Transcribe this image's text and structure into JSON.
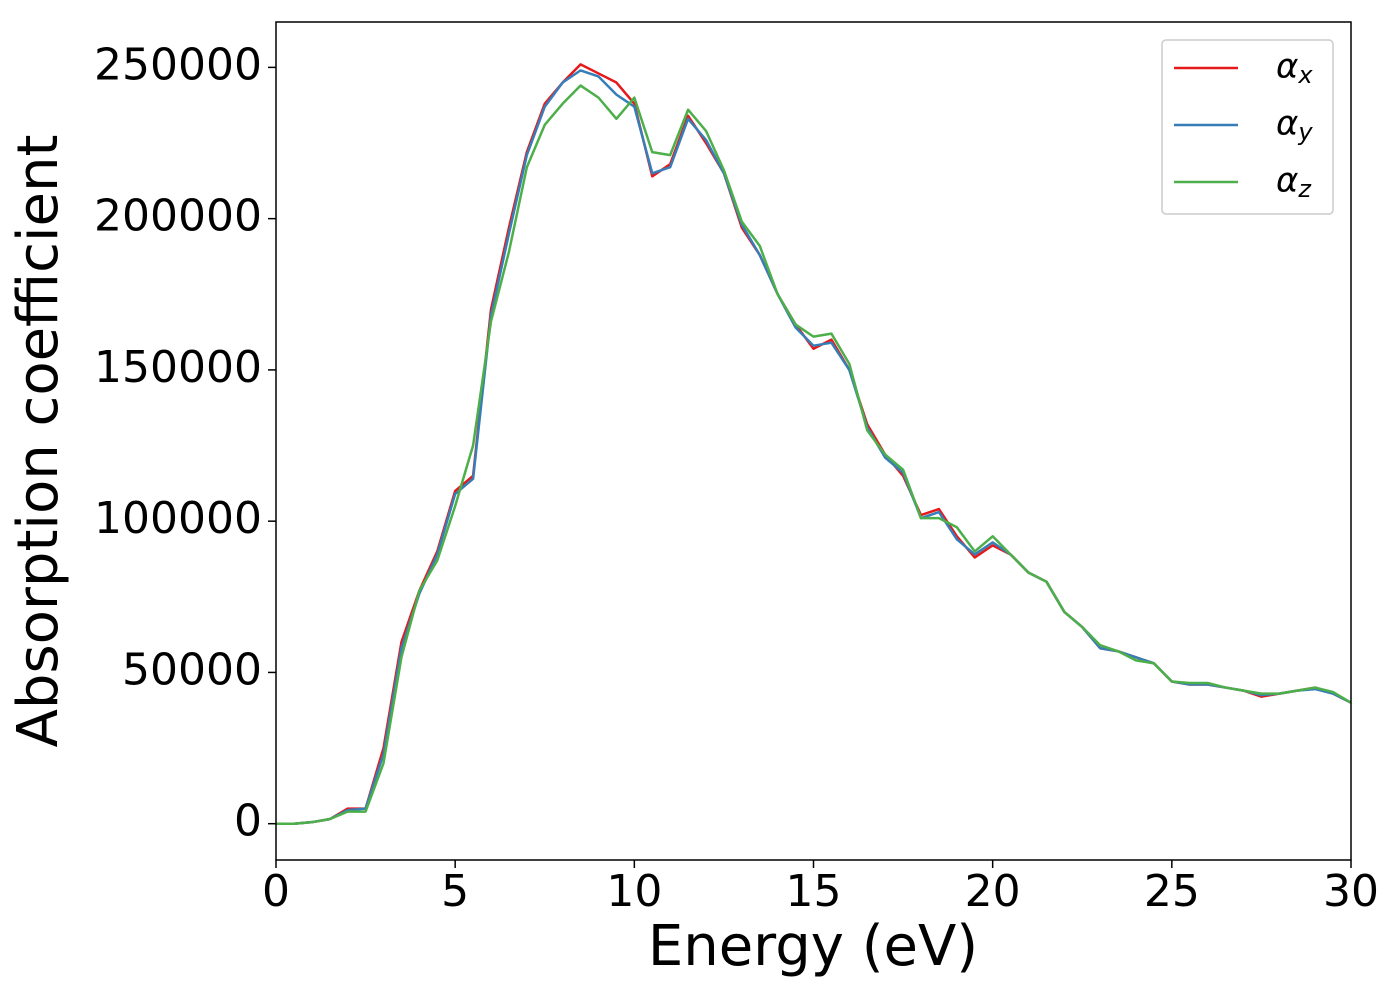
{
  "chart_data": {
    "type": "line",
    "x_label": "Energy (eV)",
    "y_label": "Absorption coefficient",
    "x": [
      0,
      0.5,
      1,
      1.5,
      2,
      2.5,
      3,
      3.5,
      4,
      4.5,
      5,
      5.5,
      6,
      6.5,
      7,
      7.5,
      8,
      8.5,
      9,
      9.5,
      10,
      10.5,
      11,
      11.5,
      12,
      12.5,
      13,
      13.5,
      14,
      14.5,
      15,
      15.5,
      16,
      16.5,
      17,
      17.5,
      18,
      18.5,
      19,
      19.5,
      20,
      20.5,
      21,
      21.5,
      22,
      22.5,
      23,
      23.5,
      24,
      24.5,
      25,
      25.5,
      26,
      26.5,
      27,
      27.5,
      28,
      28.5,
      29,
      29.5,
      30
    ],
    "series": [
      {
        "name": "αx",
        "color": "#e41a1c",
        "values": [
          0,
          0,
          500,
          1500,
          5000,
          5000,
          25000,
          60000,
          77000,
          90000,
          110000,
          115000,
          170000,
          197000,
          222000,
          238000,
          245000,
          251000,
          248000,
          245000,
          238000,
          214000,
          218000,
          234000,
          225000,
          215000,
          197000,
          188000,
          175000,
          165000,
          157000,
          160000,
          150000,
          132000,
          122000,
          115000,
          102000,
          104000,
          95000,
          88000,
          92000,
          89000,
          83000,
          80000,
          70000,
          65000,
          58000,
          57000,
          55000,
          53000,
          47000,
          46000,
          46000,
          45000,
          44000,
          42000,
          43000,
          44000,
          45000,
          43000,
          40000
        ]
      },
      {
        "name": "αy",
        "color": "#377eb8",
        "values": [
          0,
          0,
          500,
          1500,
          4500,
          5000,
          23000,
          58000,
          76000,
          89000,
          109000,
          114000,
          168000,
          195000,
          221000,
          237000,
          245000,
          249000,
          247000,
          241000,
          237000,
          215000,
          217000,
          233000,
          226000,
          215000,
          198000,
          188000,
          175000,
          164000,
          158000,
          159000,
          150000,
          131000,
          121000,
          116000,
          101000,
          103000,
          94000,
          89000,
          93000,
          89000,
          83000,
          80000,
          70000,
          65000,
          58000,
          57000,
          55000,
          53000,
          47000,
          46000,
          46000,
          45000,
          44000,
          42500,
          43000,
          44000,
          44500,
          43000,
          40000
        ]
      },
      {
        "name": "αz",
        "color": "#4daf4a",
        "values": [
          0,
          0,
          500,
          1500,
          4000,
          4000,
          20000,
          55000,
          77000,
          87000,
          105000,
          125000,
          166000,
          189000,
          217000,
          231000,
          238000,
          244000,
          240000,
          233000,
          240000,
          222000,
          221000,
          236000,
          229000,
          216000,
          199000,
          191000,
          175000,
          165000,
          161000,
          162000,
          152000,
          130000,
          122000,
          117000,
          101000,
          101000,
          98000,
          90000,
          95000,
          89000,
          83000,
          80000,
          70000,
          65000,
          59000,
          57000,
          54000,
          53000,
          47000,
          46500,
          46500,
          45000,
          44000,
          43000,
          43000,
          44000,
          45000,
          43500,
          40000
        ]
      }
    ],
    "xlim": [
      0,
      30
    ],
    "xticks": [
      0,
      5,
      10,
      15,
      20,
      25,
      30
    ],
    "ylim": [
      -12000,
      265000
    ],
    "yticks": [
      0,
      50000,
      100000,
      150000,
      200000,
      250000
    ],
    "grid": false,
    "legend": "upper right"
  }
}
